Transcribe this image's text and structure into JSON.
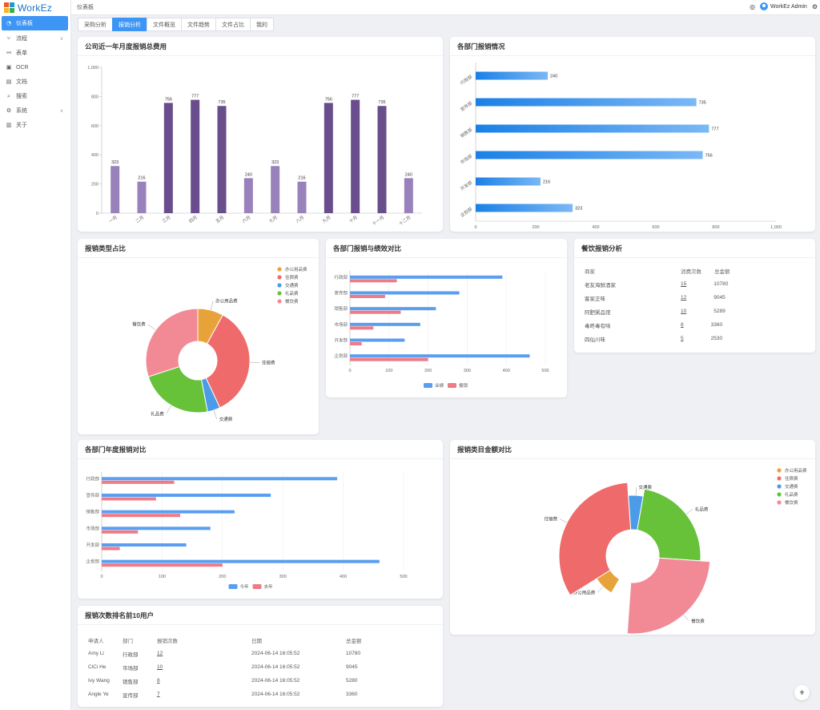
{
  "app": {
    "name": "WorkEz"
  },
  "sidebar": {
    "items": [
      {
        "label": "仪表板",
        "icon": "dashboard-icon",
        "active": true
      },
      {
        "label": "流程",
        "icon": "flow-icon",
        "expandable": true
      },
      {
        "label": "表单",
        "icon": "form-icon"
      },
      {
        "label": "OCR",
        "icon": "ocr-icon"
      },
      {
        "label": "文档",
        "icon": "document-icon"
      },
      {
        "label": "搜索",
        "icon": "search-icon"
      },
      {
        "label": "系统",
        "icon": "gear-icon",
        "expandable": true
      },
      {
        "label": "关于",
        "icon": "info-icon"
      }
    ]
  },
  "header": {
    "breadcrumb": "仪表板",
    "user": "WorkEz Admin"
  },
  "tabs": [
    {
      "label": "采购分析",
      "active": false
    },
    {
      "label": "报销分析",
      "active": true
    },
    {
      "label": "文件概览",
      "active": false
    },
    {
      "label": "文件趋势",
      "active": false
    },
    {
      "label": "文件占比",
      "active": false
    },
    {
      "label": "我的",
      "active": false
    }
  ],
  "cards": {
    "monthly": {
      "title": "公司近一年月度报销总费用"
    },
    "dept_status": {
      "title": "各部门报销情况"
    },
    "type_ratio": {
      "title": "报销类型占比"
    },
    "dept_perf": {
      "title": "各部门报销与绩效对比"
    },
    "dining": {
      "title": "餐饮报销分析"
    },
    "dept_year": {
      "title": "各部门年度报销对比"
    },
    "category_amount": {
      "title": "报销类目金额对比"
    },
    "top_users": {
      "title": "报销次数排名前10用户"
    }
  },
  "dining_table": {
    "headers": [
      "商家",
      "消费次数",
      "总金额"
    ],
    "rows": [
      [
        "老友海鲜酒家",
        "15",
        "10780"
      ],
      [
        "客家正味",
        "12",
        "9045"
      ],
      [
        "阿肥粥品馆",
        "10",
        "5289"
      ],
      [
        "毒咚毒有味",
        "8",
        "3360"
      ],
      [
        "四仙川味",
        "5",
        "2530"
      ]
    ]
  },
  "users_table": {
    "headers": [
      "申请人",
      "部门",
      "报销次数",
      "日期",
      "总金额"
    ],
    "rows": [
      [
        "Amy Li",
        "行政部",
        "12",
        "2024-06-14 16:05:52",
        "10780"
      ],
      [
        "CiCi He",
        "市场部",
        "10",
        "2024-06-14 16:05:52",
        "9045"
      ],
      [
        "Ivy Wang",
        "销售部",
        "8",
        "2024-06-14 16:05:52",
        "5280"
      ],
      [
        "Angle Ye",
        "宣传部",
        "7",
        "2024-06-14 16:05:52",
        "3360"
      ]
    ]
  },
  "colors": {
    "accent": "#3d95f5",
    "purple_light": "#9982bb",
    "purple_dark": "#6a4d8c",
    "blue_bar": "#5a9ef0",
    "red_bar": "#ee7b85"
  },
  "chart_data": [
    {
      "type": "bar",
      "categories": [
        "一月",
        "二月",
        "三月",
        "四月",
        "五月",
        "六月",
        "七月",
        "八月",
        "九月",
        "十月",
        "十一月",
        "十二月"
      ],
      "values": [
        323,
        216,
        756,
        777,
        735,
        240,
        323,
        216,
        756,
        777,
        735,
        240
      ],
      "ylim": [
        0,
        1000
      ],
      "yticks": [
        "0",
        "200",
        "400",
        "600",
        "800",
        "1,000"
      ],
      "xlabel": "",
      "ylabel": ""
    },
    {
      "type": "bar",
      "orientation": "horizontal",
      "categories": [
        "行政部",
        "宣传部",
        "销售部",
        "市场部",
        "开发部",
        "企划部"
      ],
      "values": [
        240,
        735,
        777,
        756,
        216,
        323
      ],
      "xlim": [
        0,
        1000
      ],
      "xticks": [
        "0",
        "200",
        "400",
        "600",
        "800",
        "1,000"
      ]
    },
    {
      "type": "pie",
      "donut": true,
      "labels": [
        "办公用品费",
        "住宿费",
        "交通费",
        "礼品费",
        "餐饮费"
      ],
      "values": [
        8,
        35,
        4,
        23,
        30
      ],
      "colors": [
        "#e8a23a",
        "#ef6b6b",
        "#4c9be8",
        "#67c23a",
        "#f28a96"
      ],
      "legend": "top-right"
    },
    {
      "type": "bar",
      "orientation": "horizontal",
      "categories": [
        "行政部",
        "宣传部",
        "销售部",
        "市场部",
        "开发部",
        "企划部"
      ],
      "series": [
        {
          "name": "业绩",
          "values": [
            390,
            280,
            220,
            180,
            140,
            460
          ]
        },
        {
          "name": "报销",
          "values": [
            120,
            90,
            130,
            60,
            30,
            200
          ]
        }
      ],
      "xlim": [
        0,
        500
      ],
      "xticks": [
        "0",
        "100",
        "200",
        "300",
        "400",
        "500"
      ],
      "legend": "bottom"
    },
    {
      "type": "bar",
      "orientation": "horizontal",
      "categories": [
        "行政部",
        "宣传部",
        "销售部",
        "市场部",
        "开发部",
        "企划部"
      ],
      "series": [
        {
          "name": "今年",
          "values": [
            390,
            280,
            220,
            180,
            140,
            460
          ]
        },
        {
          "name": "去年",
          "values": [
            120,
            90,
            130,
            60,
            30,
            200
          ]
        }
      ],
      "xlim": [
        0,
        500
      ],
      "xticks": [
        "0",
        "100",
        "200",
        "300",
        "400",
        "500"
      ],
      "legend": "bottom"
    },
    {
      "type": "pie",
      "donut": true,
      "rose": true,
      "labels": [
        "办公用品费",
        "住宿费",
        "交通费",
        "礼品费",
        "餐饮费"
      ],
      "values": [
        8,
        35,
        4,
        23,
        30
      ],
      "colors": [
        "#e8a23a",
        "#ef6b6b",
        "#4c9be8",
        "#67c23a",
        "#f28a96"
      ],
      "legend": "top-right"
    }
  ]
}
